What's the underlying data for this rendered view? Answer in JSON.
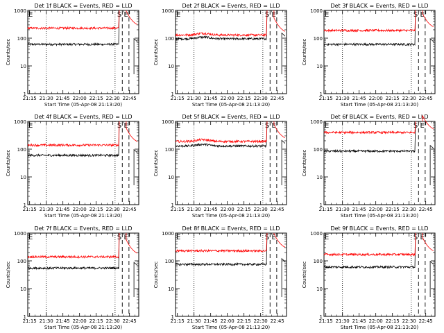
{
  "window": {
    "width": 640,
    "height": 480
  },
  "panel_common": {
    "title_template": "Det {det} BLACK = Events, RED = LLD",
    "ylabel": "Counts/sec",
    "xlabel": "Start Time (05-Apr-08 21:13:20)",
    "y_scale": "log",
    "ylim": [
      1,
      1000
    ],
    "y_ticks": [
      1,
      10,
      100,
      1000
    ],
    "x_ticks": [
      "21:15",
      "21:30",
      "21:45",
      "22:00",
      "22:15",
      "22:30",
      "22:45"
    ],
    "x_tick_minutes": [
      15,
      30,
      45,
      60,
      75,
      90,
      105
    ],
    "xlim_minutes": [
      13.33,
      113.33
    ],
    "markers": [
      {
        "label": "S",
        "minute": 98.5,
        "style": "dashed"
      },
      {
        "label": "E",
        "minute": 104.5,
        "style": "dashed"
      }
    ],
    "dotted_lines_minutes": [
      30,
      92
    ]
  },
  "colors": {
    "events": "#000000",
    "lld": "#ff0000",
    "axes": "#000000"
  },
  "chart_data": [
    {
      "type": "line",
      "det": "1f",
      "title": "Det 1f BLACK = Events, RED = LLD",
      "xlabel": "Start Time (05-Apr-08 21:13:20)",
      "ylabel": "Counts/sec",
      "series": [
        {
          "name": "Events",
          "color": "#000000",
          "level": 60
        },
        {
          "name": "LLD",
          "color": "#ff0000",
          "level": 230
        }
      ]
    },
    {
      "type": "line",
      "det": "2f",
      "title": "Det 2f BLACK = Events, RED = LLD",
      "xlabel": "Start Time (05-Apr-08 21:13:20)",
      "ylabel": "Counts/sec",
      "series": [
        {
          "name": "Events",
          "color": "#000000",
          "level": 95
        },
        {
          "name": "LLD",
          "color": "#ff0000",
          "level": 130
        }
      ]
    },
    {
      "type": "line",
      "det": "3f",
      "title": "Det 3f BLACK = Events, RED = LLD",
      "xlabel": "Start Time (05-Apr-08 21:13:20)",
      "ylabel": "Counts/sec",
      "series": [
        {
          "name": "Events",
          "color": "#000000",
          "level": 60
        },
        {
          "name": "LLD",
          "color": "#ff0000",
          "level": 190
        }
      ]
    },
    {
      "type": "line",
      "det": "4f",
      "title": "Det 4f BLACK = Events, RED = LLD",
      "xlabel": "Start Time (05-Apr-08 21:13:20)",
      "ylabel": "Counts/sec",
      "series": [
        {
          "name": "Events",
          "color": "#000000",
          "level": 60
        },
        {
          "name": "LLD",
          "color": "#ff0000",
          "level": 140
        }
      ]
    },
    {
      "type": "line",
      "det": "5f",
      "title": "Det 5f BLACK = Events, RED = LLD",
      "xlabel": "Start Time (05-Apr-08 21:13:20)",
      "ylabel": "Counts/sec",
      "series": [
        {
          "name": "Events",
          "color": "#000000",
          "level": 130
        },
        {
          "name": "LLD",
          "color": "#ff0000",
          "level": 190
        }
      ]
    },
    {
      "type": "line",
      "det": "6f",
      "title": "Det 6f BLACK = Events, RED = LLD",
      "xlabel": "Start Time (05-Apr-08 21:13:20)",
      "ylabel": "Counts/sec",
      "series": [
        {
          "name": "Events",
          "color": "#000000",
          "level": 85
        },
        {
          "name": "LLD",
          "color": "#ff0000",
          "level": 400
        }
      ]
    },
    {
      "type": "line",
      "det": "7f",
      "title": "Det 7f BLACK = Events, RED = LLD",
      "xlabel": "Start Time (05-Apr-08 21:13:20)",
      "ylabel": "Counts/sec",
      "series": [
        {
          "name": "Events",
          "color": "#000000",
          "level": 55
        },
        {
          "name": "LLD",
          "color": "#ff0000",
          "level": 140
        }
      ]
    },
    {
      "type": "line",
      "det": "8f",
      "title": "Det 8f BLACK = Events, RED = LLD",
      "xlabel": "Start Time (05-Apr-08 21:13:20)",
      "ylabel": "Counts/sec",
      "series": [
        {
          "name": "Events",
          "color": "#000000",
          "level": 75
        },
        {
          "name": "LLD",
          "color": "#ff0000",
          "level": 230
        }
      ]
    },
    {
      "type": "line",
      "det": "9f",
      "title": "Det 9f BLACK = Events, RED = LLD",
      "xlabel": "Start Time (05-Apr-08 21:13:20)",
      "ylabel": "Counts/sec",
      "series": [
        {
          "name": "Events",
          "color": "#000000",
          "level": 60
        },
        {
          "name": "LLD",
          "color": "#ff0000",
          "level": 170
        }
      ]
    }
  ]
}
